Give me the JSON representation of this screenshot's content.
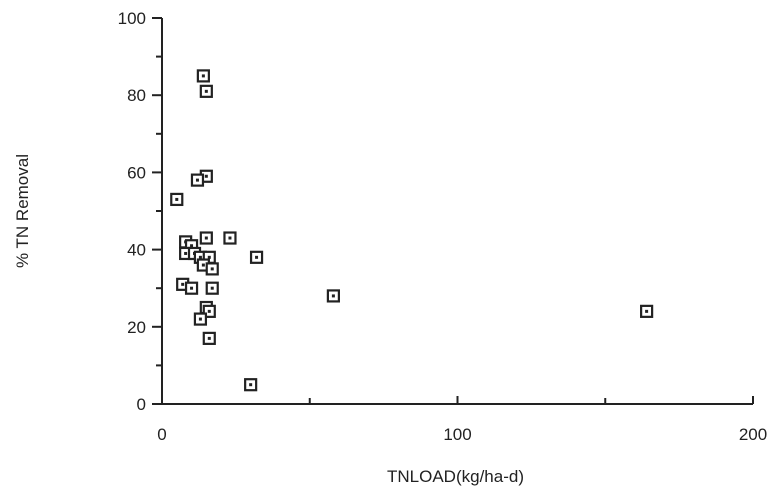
{
  "chart_data": {
    "type": "scatter",
    "title": "",
    "xlabel": "TNLOAD(kg/ha-d)",
    "ylabel": "% TN Removal",
    "xlim": [
      0,
      200
    ],
    "ylim": [
      0,
      100
    ],
    "x_ticks": [
      0,
      100,
      200
    ],
    "x_minor_ticks": [
      50,
      150
    ],
    "y_ticks": [
      0,
      20,
      40,
      60,
      80,
      100
    ],
    "y_minor_ticks": [
      10,
      30,
      50,
      70,
      90
    ],
    "grid": false,
    "legend": "none",
    "colors": {
      "marker": "#222222",
      "axis": "#222222"
    },
    "series": [
      {
        "points": [
          {
            "x": 14,
            "y": 85
          },
          {
            "x": 15,
            "y": 81
          },
          {
            "x": 15,
            "y": 59
          },
          {
            "x": 12,
            "y": 58
          },
          {
            "x": 5,
            "y": 53
          },
          {
            "x": 8,
            "y": 42
          },
          {
            "x": 10,
            "y": 41
          },
          {
            "x": 8,
            "y": 39
          },
          {
            "x": 11,
            "y": 39
          },
          {
            "x": 15,
            "y": 43
          },
          {
            "x": 23,
            "y": 43
          },
          {
            "x": 13,
            "y": 38
          },
          {
            "x": 16,
            "y": 38
          },
          {
            "x": 14,
            "y": 36
          },
          {
            "x": 17,
            "y": 35
          },
          {
            "x": 32,
            "y": 38
          },
          {
            "x": 7,
            "y": 31
          },
          {
            "x": 10,
            "y": 30
          },
          {
            "x": 17,
            "y": 30
          },
          {
            "x": 58,
            "y": 28
          },
          {
            "x": 15,
            "y": 25
          },
          {
            "x": 16,
            "y": 24
          },
          {
            "x": 13,
            "y": 22
          },
          {
            "x": 16,
            "y": 17
          },
          {
            "x": 164,
            "y": 24
          },
          {
            "x": 30,
            "y": 5
          }
        ]
      }
    ]
  }
}
